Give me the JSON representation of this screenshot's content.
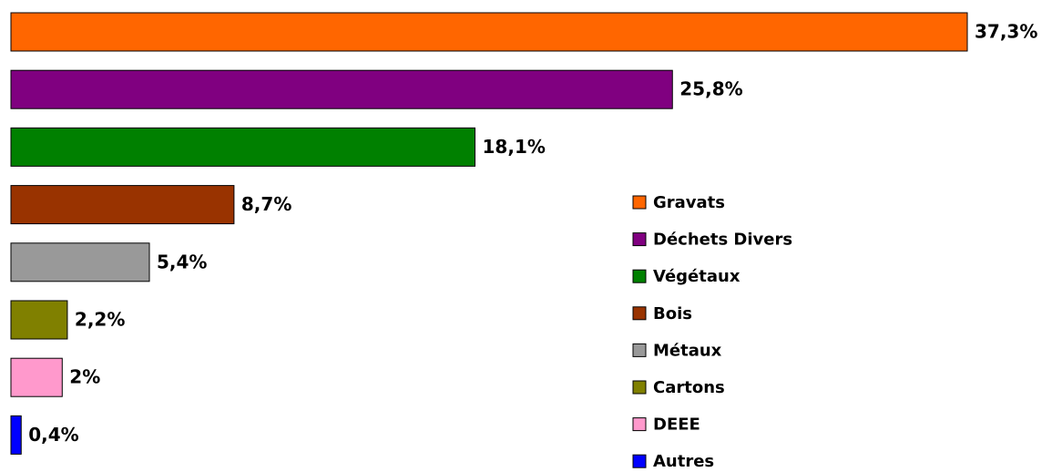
{
  "chart_data": {
    "type": "bar",
    "orientation": "horizontal",
    "categories": [
      "Gravats",
      "Déchets Divers",
      "Végétaux",
      "Bois",
      "Métaux",
      "Cartons",
      "DEEE",
      "Autres"
    ],
    "values": [
      37.3,
      25.8,
      18.1,
      8.7,
      5.4,
      2.2,
      2,
      0.4
    ],
    "value_labels": [
      "37,3%",
      "25,8%",
      "18,1%",
      "8,7%",
      "5,4%",
      "2,2%",
      "2%",
      "0,4%"
    ],
    "colors": [
      "#ff6600",
      "#800080",
      "#008000",
      "#993300",
      "#999999",
      "#808000",
      "#ff99cc",
      "#0000ff"
    ],
    "legend": "right"
  }
}
